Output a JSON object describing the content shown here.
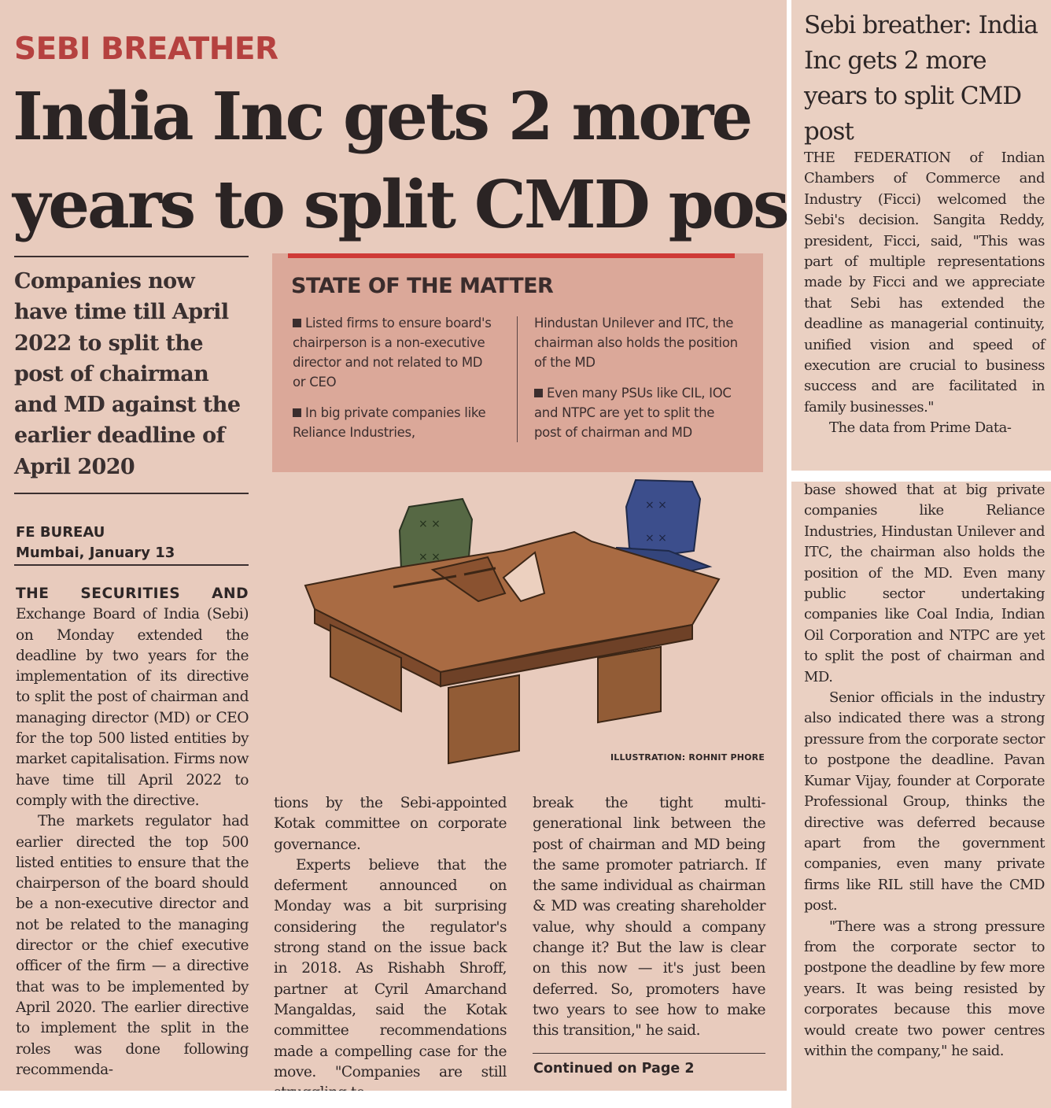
{
  "article": {
    "kicker": "SEBI BREATHER",
    "headline_line1": "India Inc gets 2 more",
    "headline_line2": "years to split CMD post",
    "deck": "Companies now have time till April 2022 to split the post of chairman and MD against the earlier deadline of April 2020",
    "byline_source": "FE BUREAU",
    "byline_dateline": "Mumbai, January 13",
    "col1_lead": "THE SECURITIES AND",
    "col1_p1_rest": "Exchange Board of India (Sebi) on Monday extended the deadline by two years for the implementation of its directive to split the post of chairman and managing director (MD) or CEO for the top 500 listed entities by market capitalisation. Firms now have time till April 2022 to comply with the directive.",
    "col1_p2": "The markets regulator had earlier directed the top 500 listed entities to ensure that the chairperson of the board should be a non-executive director and not be related to the managing director or the chief executive officer of the firm — a directive that was to be implemented by April 2020. The earlier directive to implement the split in the roles was done following recommenda-",
    "col2_p1": "tions by the Sebi-appointed Kotak committee on corporate governance.",
    "col2_p2": "Experts believe that the deferment announced on Monday was a bit surprising considering the regulator's strong stand on the issue back in 2018. As Rishabh Shroff, partner at Cyril Amarchand Mangaldas, said the Kotak committee recommendations made a compelling case for the move. \"Companies are still struggling to",
    "col3_p1": "break the tight multi-generational link between the post of chairman and MD being the same promoter patriarch. If the same individual as chairman & MD was creating shareholder value, why should a company change it? But the law is clear on this now — it's just been deferred. So, promoters have two years to see how to make this transition,\" he said.",
    "continued": "Continued on Page 2",
    "illustration_credit": "ILLUSTRATION: ROHNIT PHORE"
  },
  "state_of_matter": {
    "title": "STATE OF THE MATTER",
    "bullet1": "Listed firms to ensure board's chairperson is a non-executive director and not related to MD or CEO",
    "bullet2": "In big private companies like Reliance Industries,",
    "bullet2_cont": "Hindustan Unilever and ITC, the chairman also holds the position of the MD",
    "bullet3": "Even many PSUs like CIL, IOC and NTPC are yet to split the post of chairman and MD"
  },
  "continuation": {
    "title": "Sebi breather: India Inc gets 2 more years to split CMD post",
    "p1": "THE FEDERATION of Indian Chambers of Commerce and Industry (Ficci) welcomed the Sebi's decision. Sangita Reddy, president, Ficci, said, \"This was part of multiple representations made by Ficci and we appreciate that Sebi has extended the deadline as managerial continuity, unified vision and speed of execution are crucial to business success and are facilitated in family businesses.\"",
    "p2_start": "The data from Prime Data-",
    "p2_rest": "base showed that at big private companies like Reliance Industries, Hindustan Unilever and ITC, the chairman also holds the position of the MD. Even many public sector undertaking companies like Coal India, Indian Oil Corporation and NTPC are yet to split the post of chairman and MD.",
    "p3": "Senior officials in the industry also indicated there was a strong pressure from the corporate sector to postpone the deadline. Pavan Kumar Vijay, founder at Corporate Professional Group, thinks the directive was deferred because apart from the government companies, even many private firms like RIL still have the CMD post.",
    "p4": "\"There was a strong pressure from the corporate sector to postpone the deadline by few more years. It was being resisted by corporates because this move would create two power centres within the company,\" he said."
  },
  "colors": {
    "paper": "#e8cbbd",
    "kicker_red": "#b5413f",
    "box_bg": "#dba899",
    "box_bar": "#cf3a36"
  }
}
